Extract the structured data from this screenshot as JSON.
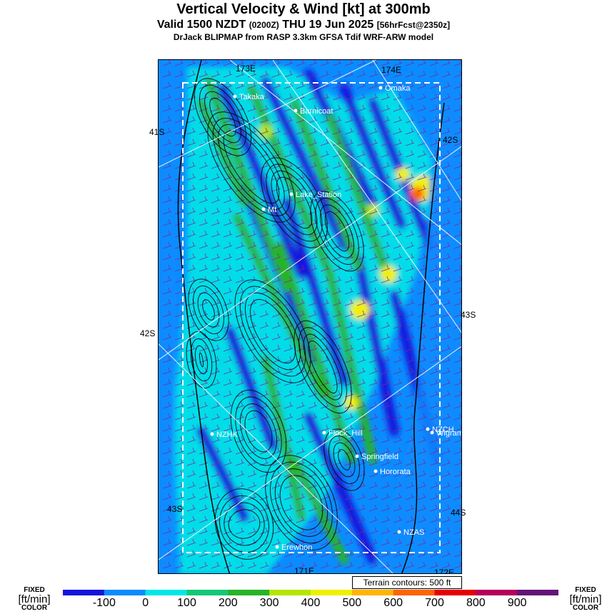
{
  "header": {
    "title": "Vertical Velocity & Wind [kt] at 300mb",
    "valid_prefix": "Valid 1500 NZDT ",
    "valid_utc": "(0200Z)",
    "valid_date": " THU 19 Jun 2025 ",
    "forecast": "[56hrFcst@2350z]",
    "model_line": "DrJack BLIPMAP from RASP 3.3km GFSA Tdif WRF-ARW model"
  },
  "map": {
    "grid_labels": {
      "top_left_lon": "173E",
      "top_right_lon": "174E",
      "bottom_left_lon": "171E",
      "bottom_right_lon": "172E",
      "lat_left_upper": "41S",
      "lat_left_lower": "42S",
      "lat_right_upper": "42S",
      "lat_right_middle": "43S",
      "lat_right_lower": "44S",
      "lat_inner_lower": "43S"
    },
    "places": [
      {
        "name": "Takaka"
      },
      {
        "name": "Omaka"
      },
      {
        "name": "Barnicoat"
      },
      {
        "name": "Lake_Station"
      },
      {
        "name": "Mt"
      },
      {
        "name": "NZHK"
      },
      {
        "name": "Flock_Hill"
      },
      {
        "name": "NZCH"
      },
      {
        "name": "Wigram"
      },
      {
        "name": "Springfield"
      },
      {
        "name": "Hororata"
      },
      {
        "name": "NZAS"
      },
      {
        "name": "Erewhon"
      }
    ],
    "terrain_note": "Terrain contours: 500 ft"
  },
  "legend": {
    "left_fixed": "FIXED",
    "left_units": "[ft/min]",
    "left_color": "COLOR",
    "right_fixed": "FIXED",
    "right_units": "[ft/min]",
    "right_color": "COLOR",
    "ticks": [
      "-100",
      "0",
      "100",
      "200",
      "300",
      "400",
      "500",
      "600",
      "700",
      "800",
      "900"
    ],
    "colors": [
      "#1414dc",
      "#0a8cff",
      "#00e6e6",
      "#14c878",
      "#28b428",
      "#b4e600",
      "#f0f000",
      "#ffb400",
      "#ff6400",
      "#e60000",
      "#b4005a",
      "#641478"
    ]
  }
}
